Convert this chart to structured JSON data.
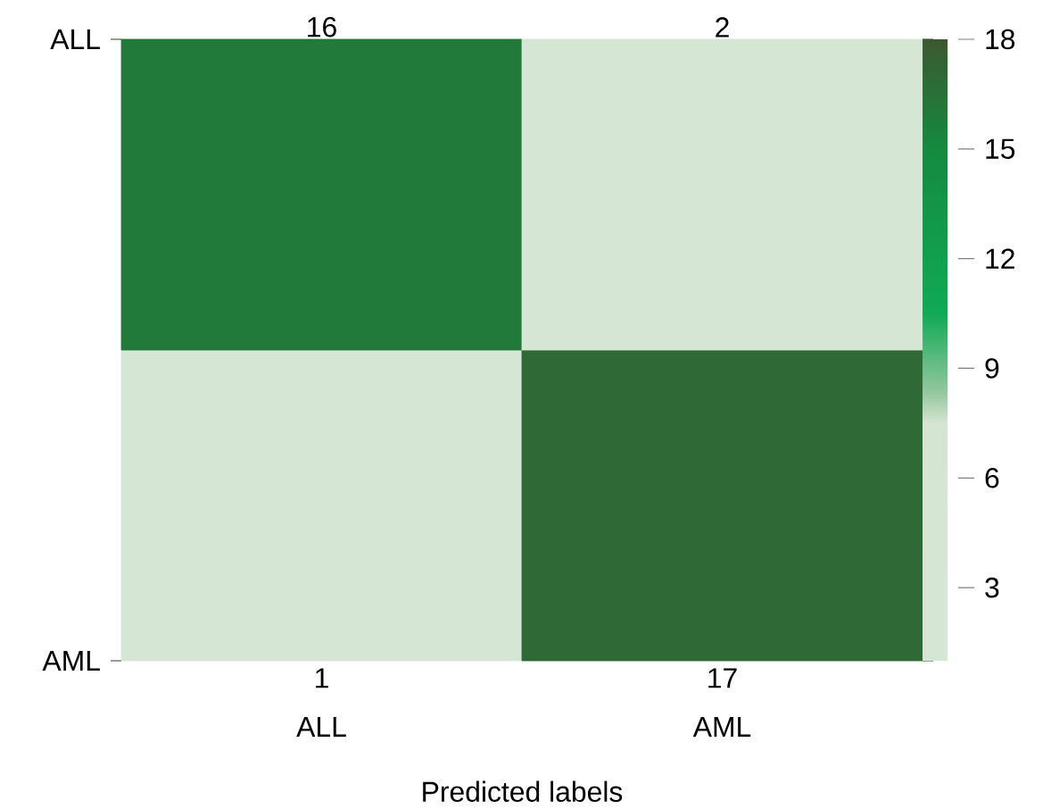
{
  "chart_data": {
    "type": "heatmap",
    "xlabel": "Predicted labels",
    "categories": [
      "ALL",
      "AML"
    ],
    "y_categories": [
      "ALL",
      "AML"
    ],
    "cells": [
      [
        16,
        2
      ],
      [
        1,
        17
      ]
    ],
    "clim": [
      1,
      18
    ],
    "cticks": [
      3,
      6,
      9,
      12,
      15,
      18
    ],
    "data_labels": true
  }
}
